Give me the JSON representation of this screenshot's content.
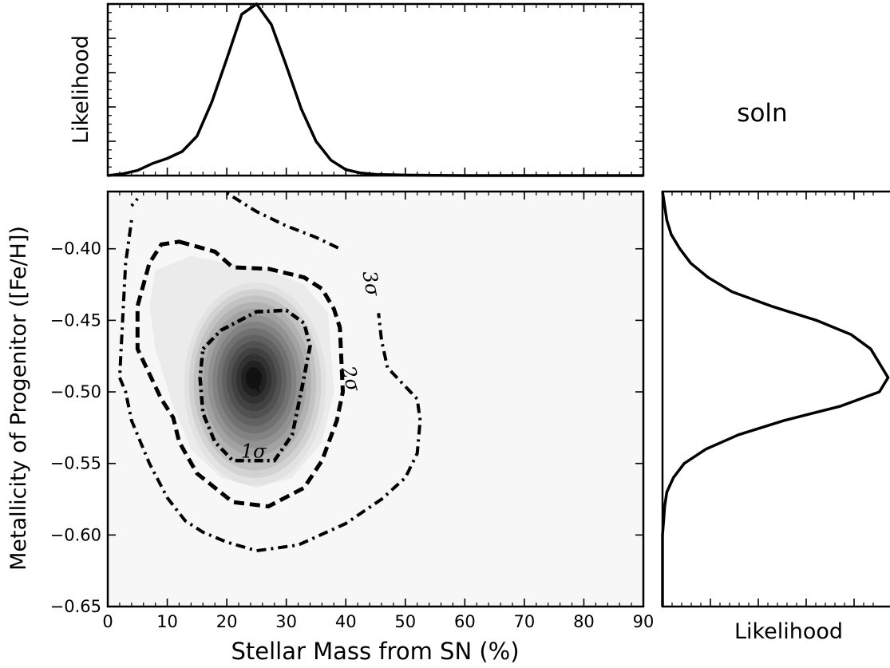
{
  "chart_data": [
    {
      "panel": "top-marginal",
      "type": "line",
      "ylabel": "Likelihood",
      "xlim": [
        0,
        90
      ],
      "ylim": [
        0,
        1.0
      ],
      "grid": false,
      "series": [
        {
          "x": [
            0,
            2.5,
            5,
            7.5,
            10,
            12.5,
            15,
            17.5,
            20,
            22.5,
            25,
            27.5,
            30,
            32.5,
            35,
            37.5,
            40,
            42.5,
            45,
            50,
            55,
            60,
            70,
            80,
            90
          ],
          "y": [
            0.0,
            0.01,
            0.03,
            0.07,
            0.1,
            0.14,
            0.23,
            0.43,
            0.68,
            0.94,
            1.0,
            0.88,
            0.64,
            0.39,
            0.2,
            0.09,
            0.035,
            0.015,
            0.007,
            0.003,
            0.001,
            0.0,
            0.0,
            0.0,
            0.0
          ]
        }
      ]
    },
    {
      "panel": "main-contour",
      "type": "contour",
      "xlabel": "Stellar Mass from SN (%)",
      "ylabel": "Metallicity of Progenitor ([Fe/H])",
      "xlim": [
        0,
        90
      ],
      "ylim": [
        -0.65,
        -0.36
      ],
      "x_ticks": [
        "0",
        "10",
        "20",
        "30",
        "40",
        "50",
        "60",
        "70",
        "80",
        "90"
      ],
      "y_ticks": [
        "−0.65",
        "−0.60",
        "−0.55",
        "−0.50",
        "−0.45",
        "−0.40"
      ],
      "grid": false,
      "peak": {
        "x": 24.5,
        "y": -0.49
      },
      "contour_labels": [
        "1σ",
        "2σ",
        "3σ"
      ],
      "contours": {
        "one_sigma": [
          [
            16,
            -0.47
          ],
          [
            19,
            -0.457
          ],
          [
            25,
            -0.444
          ],
          [
            30,
            -0.443
          ],
          [
            33,
            -0.452
          ],
          [
            34,
            -0.468
          ],
          [
            32.5,
            -0.5
          ],
          [
            31,
            -0.53
          ],
          [
            28,
            -0.548
          ],
          [
            21,
            -0.548
          ],
          [
            18,
            -0.535
          ],
          [
            16,
            -0.515
          ],
          [
            15.5,
            -0.49
          ]
        ],
        "two_sigma": [
          [
            12,
            -0.395
          ],
          [
            18,
            -0.402
          ],
          [
            21,
            -0.413
          ],
          [
            27,
            -0.414
          ],
          [
            33,
            -0.42
          ],
          [
            36,
            -0.428
          ],
          [
            38,
            -0.442
          ],
          [
            39,
            -0.455
          ],
          [
            39.5,
            -0.5
          ],
          [
            38.5,
            -0.52
          ],
          [
            36,
            -0.548
          ],
          [
            33,
            -0.567
          ],
          [
            27,
            -0.58
          ],
          [
            21,
            -0.577
          ],
          [
            15,
            -0.557
          ],
          [
            12,
            -0.535
          ],
          [
            11,
            -0.518
          ],
          [
            9,
            -0.505
          ],
          [
            5,
            -0.47
          ],
          [
            5,
            -0.44
          ],
          [
            7,
            -0.41
          ],
          [
            9,
            -0.397
          ]
        ],
        "three_sigma_top": [
          [
            4,
            -0.37
          ],
          [
            5,
            -0.365
          ]
        ],
        "three_sigma_main": [
          [
            4,
            -0.38
          ],
          [
            3,
            -0.41
          ],
          [
            2.5,
            -0.45
          ],
          [
            2,
            -0.49
          ],
          [
            3,
            -0.5
          ],
          [
            4,
            -0.52
          ],
          [
            7,
            -0.55
          ],
          [
            10,
            -0.574
          ],
          [
            13,
            -0.59
          ],
          [
            16,
            -0.598
          ],
          [
            20,
            -0.605
          ],
          [
            25,
            -0.611
          ],
          [
            32,
            -0.607
          ],
          [
            40,
            -0.592
          ],
          [
            46,
            -0.575
          ],
          [
            50,
            -0.56
          ],
          [
            52,
            -0.543
          ],
          [
            52.5,
            -0.52
          ],
          [
            52,
            -0.505
          ],
          [
            47,
            -0.483
          ],
          [
            46,
            -0.464
          ],
          [
            45.5,
            -0.445
          ]
        ],
        "three_sigma_upper": [
          [
            20,
            -0.361
          ],
          [
            25,
            -0.374
          ],
          [
            30,
            -0.384
          ],
          [
            35,
            -0.392
          ],
          [
            39,
            -0.4
          ]
        ]
      }
    },
    {
      "panel": "right-marginal",
      "type": "line",
      "xlabel": "Likelihood",
      "ylim": [
        -0.65,
        -0.36
      ],
      "xlim": [
        0,
        1.06
      ],
      "grid": false,
      "series": [
        {
          "y": [
            -0.36,
            -0.38,
            -0.39,
            -0.4,
            -0.41,
            -0.42,
            -0.43,
            -0.44,
            -0.45,
            -0.46,
            -0.47,
            -0.48,
            -0.49,
            -0.5,
            -0.51,
            -0.52,
            -0.53,
            -0.54,
            -0.55,
            -0.56,
            -0.57,
            -0.58,
            -0.59,
            -0.6,
            -0.62,
            -0.65
          ],
          "x": [
            0.0,
            0.02,
            0.04,
            0.08,
            0.13,
            0.21,
            0.32,
            0.5,
            0.71,
            0.87,
            0.96,
            1.0,
            1.04,
            1.0,
            0.82,
            0.56,
            0.35,
            0.2,
            0.1,
            0.05,
            0.02,
            0.01,
            0.005,
            0.0,
            0.0,
            0.0
          ]
        }
      ]
    }
  ],
  "annotation": {
    "soln_label": "soln"
  },
  "styles": {
    "line_color": "#000000",
    "background": "#f7f7f7",
    "fill_light": "#e2e2e2",
    "fill_dark": "#111111"
  }
}
